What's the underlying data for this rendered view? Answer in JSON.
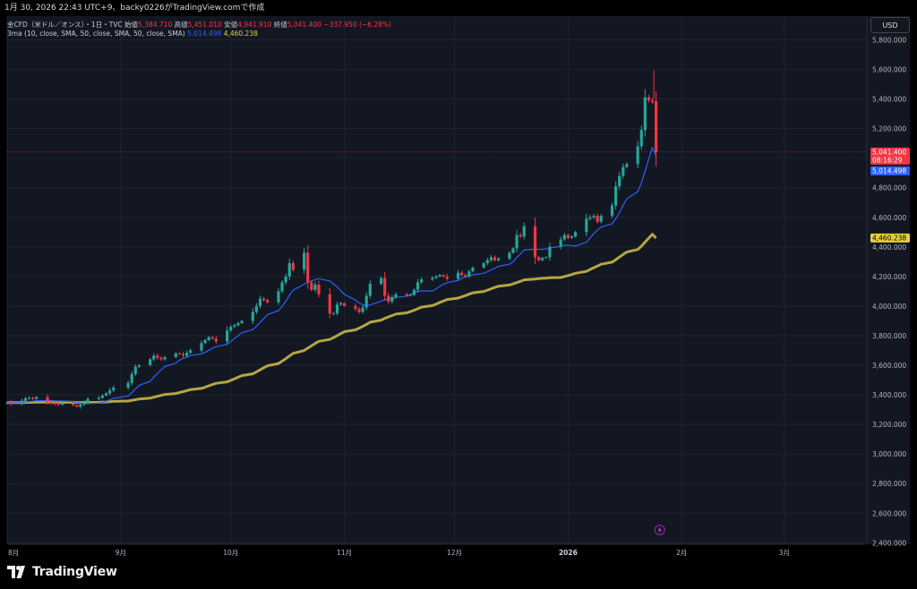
{
  "header": {
    "caption": "1月 30, 2026 22:43 UTC+9、backy0226がTradingView.comで作成"
  },
  "legend": {
    "symbol": "金CFD（米ドル／オンス）・1日・TVC",
    "open_label": "始値",
    "open_value": "5,384.710",
    "high_label": "高値",
    "high_value": "5,451.010",
    "low_label": "安値",
    "low_value": "4,941.910",
    "close_label": "終値",
    "close_value": "5,041.400",
    "change": "−337.950 (−6.28%)",
    "indicator": "3ma (10, close, SMA, 50, close, SMA, 50, close, SMA)",
    "ma_fast_value": "5,014.498",
    "ma_slow_value": "4,460.238"
  },
  "currency_button": "USD",
  "logo_text": "TradingView",
  "price_tags": {
    "last_price": "5,041.400",
    "countdown": "08:16:29",
    "ma_fast": "5,014.498",
    "ma_slow": "4,460.238"
  },
  "colors": {
    "up": "#26a69a",
    "down": "#f23645",
    "ma_fast": "#2962ff",
    "ma_slow": "#b5a642",
    "background": "#131722",
    "grid": "#1f2430",
    "text": "#b2b5be"
  },
  "chart_data": {
    "type": "candlestick",
    "symbol": "金CFD（米ドル／オンス）",
    "interval": "1日",
    "x_labels": [
      {
        "label": "8月",
        "day": 0
      },
      {
        "label": "9月",
        "day": 31
      },
      {
        "label": "10月",
        "day": 61
      },
      {
        "label": "11月",
        "day": 92
      },
      {
        "label": "12月",
        "day": 122
      },
      {
        "label": "2026",
        "day": 153
      },
      {
        "label": "2月",
        "day": 184
      },
      {
        "label": "3月",
        "day": 212
      }
    ],
    "y_ticks": [
      2400,
      2600,
      2800,
      3000,
      3200,
      3400,
      3600,
      3800,
      4000,
      4200,
      4400,
      4600,
      4800,
      5000,
      5200,
      5400,
      5600,
      5800
    ],
    "y_tick_labels": [
      "2,400.000",
      "2,600.000",
      "2,800.000",
      "3,000.000",
      "3,200.000",
      "3,400.000",
      "3,600.000",
      "3,800.000",
      "4,000.000",
      "4,200.000",
      "4,400.000",
      "4,600.000",
      "4,800.000",
      "5,000.000",
      "5,200.000",
      "5,400.000",
      "5,600.000",
      "5,800.000"
    ],
    "ylim": [
      2390,
      5960
    ],
    "xlim_days": [
      0,
      234
    ],
    "closes": [
      [
        0,
        3348
      ],
      [
        1,
        3340
      ],
      [
        4,
        3360
      ],
      [
        5,
        3375
      ],
      [
        6,
        3380
      ],
      [
        7,
        3372
      ],
      [
        8,
        3385
      ],
      [
        11,
        3350
      ],
      [
        12,
        3345
      ],
      [
        13,
        3338
      ],
      [
        14,
        3335
      ],
      [
        15,
        3340
      ],
      [
        18,
        3330
      ],
      [
        19,
        3320
      ],
      [
        20,
        3335
      ],
      [
        21,
        3348
      ],
      [
        22,
        3372
      ],
      [
        25,
        3380
      ],
      [
        26,
        3395
      ],
      [
        27,
        3410
      ],
      [
        28,
        3430
      ],
      [
        29,
        3448
      ],
      [
        33,
        3480
      ],
      [
        34,
        3540
      ],
      [
        35,
        3590
      ],
      [
        36,
        3600
      ],
      [
        39,
        3640
      ],
      [
        40,
        3665
      ],
      [
        41,
        3650
      ],
      [
        42,
        3640
      ],
      [
        43,
        3655
      ],
      [
        46,
        3680
      ],
      [
        47,
        3675
      ],
      [
        48,
        3665
      ],
      [
        49,
        3685
      ],
      [
        50,
        3700
      ],
      [
        53,
        3750
      ],
      [
        54,
        3770
      ],
      [
        55,
        3790
      ],
      [
        56,
        3780
      ],
      [
        57,
        3760
      ],
      [
        60,
        3835
      ],
      [
        61,
        3860
      ],
      [
        62,
        3870
      ],
      [
        63,
        3885
      ],
      [
        64,
        3900
      ],
      [
        67,
        3960
      ],
      [
        68,
        4000
      ],
      [
        69,
        4050
      ],
      [
        70,
        4040
      ],
      [
        71,
        4025
      ],
      [
        74,
        4100
      ],
      [
        75,
        4160
      ],
      [
        76,
        4200
      ],
      [
        77,
        4290
      ],
      [
        78,
        4245
      ],
      [
        81,
        4360
      ],
      [
        82,
        4160
      ],
      [
        83,
        4110
      ],
      [
        84,
        4145
      ],
      [
        85,
        4080
      ],
      [
        88,
        3950
      ],
      [
        89,
        3950
      ],
      [
        90,
        4010
      ],
      [
        91,
        4020
      ],
      [
        92,
        4000
      ],
      [
        95,
        3980
      ],
      [
        96,
        3960
      ],
      [
        97,
        3990
      ],
      [
        98,
        4070
      ],
      [
        99,
        4150
      ],
      [
        102,
        4190
      ],
      [
        103,
        4070
      ],
      [
        104,
        4030
      ],
      [
        105,
        4060
      ],
      [
        106,
        4080
      ],
      [
        109,
        4070
      ],
      [
        110,
        4075
      ],
      [
        111,
        4110
      ],
      [
        112,
        4160
      ],
      [
        113,
        4180
      ],
      [
        116,
        4190
      ],
      [
        117,
        4200
      ],
      [
        118,
        4210
      ],
      [
        119,
        4200
      ],
      [
        120,
        4185
      ],
      [
        123,
        4225
      ],
      [
        124,
        4210
      ],
      [
        125,
        4200
      ],
      [
        126,
        4235
      ],
      [
        127,
        4260
      ],
      [
        130,
        4290
      ],
      [
        131,
        4310
      ],
      [
        132,
        4330
      ],
      [
        133,
        4310
      ],
      [
        134,
        4320
      ],
      [
        137,
        4360
      ],
      [
        138,
        4390
      ],
      [
        139,
        4480
      ],
      [
        140,
        4470
      ],
      [
        141,
        4540
      ],
      [
        144,
        4330
      ],
      [
        145,
        4310
      ],
      [
        146,
        4325
      ],
      [
        147,
        4330
      ],
      [
        148,
        4400
      ],
      [
        151,
        4450
      ],
      [
        152,
        4480
      ],
      [
        153,
        4460
      ],
      [
        154,
        4470
      ],
      [
        155,
        4500
      ],
      [
        158,
        4590
      ],
      [
        159,
        4600
      ],
      [
        160,
        4610
      ],
      [
        161,
        4570
      ],
      [
        162,
        4610
      ],
      [
        165,
        4680
      ],
      [
        166,
        4810
      ],
      [
        167,
        4880
      ],
      [
        168,
        4940
      ],
      [
        169,
        4960
      ],
      [
        172,
        5080
      ],
      [
        173,
        5190
      ],
      [
        174,
        5410
      ],
      [
        175,
        5390
      ],
      [
        176,
        5380
      ],
      [
        177,
        5041.4
      ]
    ],
    "last_candle": {
      "day": 177,
      "open": 5384.71,
      "high": 5451.01,
      "low": 4941.91,
      "close": 5041.4
    },
    "intraday_high_marker": 5595,
    "moving_averages": [
      {
        "name": "SMA 10",
        "color": "#2962ff",
        "last_value": 5014.498
      },
      {
        "name": "SMA 50",
        "color": "#b5a642",
        "last_value": 4460.238
      }
    ]
  }
}
